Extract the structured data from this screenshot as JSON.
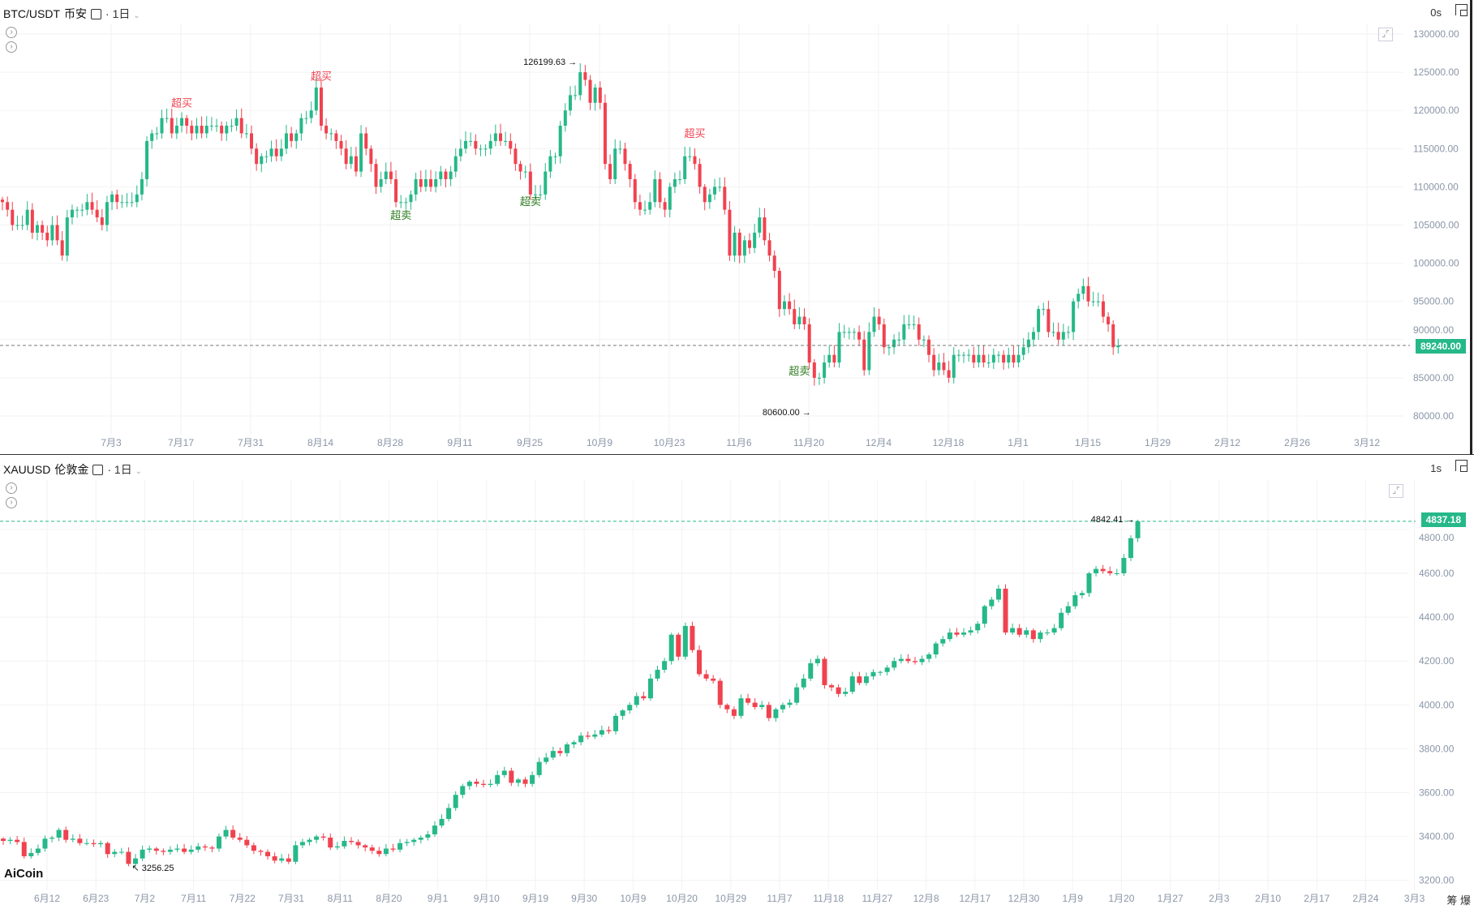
{
  "colors": {
    "up": "#26b889",
    "down": "#f0424f",
    "axis": "#8a96a8",
    "grid": "#f2f2f2",
    "signal_buy": "#f0424f",
    "signal_sell": "#2e7d1f"
  },
  "top": {
    "symbol": "BTC/USDT",
    "exchange": "币安",
    "interval": "1日",
    "refresh": "0s",
    "current_price": "89240.00",
    "high_label": "126199.63",
    "low_label": "80600.00",
    "y_ticks": [
      130000,
      125000,
      120000,
      115000,
      110000,
      105000,
      100000,
      95000,
      90000,
      85000,
      80000
    ],
    "y_tick_labels": [
      "130000.00",
      "125000.00",
      "120000.00",
      "115000.00",
      "110000.00",
      "105000.00",
      "100000.00",
      "95000.00",
      "90000.00",
      "85000.00",
      "80000.00"
    ],
    "x_ticks": [
      "7月3",
      "7月17",
      "7月31",
      "8月14",
      "8月28",
      "9月11",
      "9月25",
      "10月9",
      "10月23",
      "11月6",
      "11月20",
      "12月4",
      "12月18",
      "1月1",
      "1月15",
      "1月29",
      "2月12",
      "2月26",
      "3月12"
    ],
    "signals": [
      {
        "text": "超买",
        "type": "buy",
        "index": 36,
        "price": 120500
      },
      {
        "text": "超买",
        "type": "buy",
        "index": 64,
        "price": 124000
      },
      {
        "text": "超卖",
        "type": "sell",
        "index": 80,
        "price": 105800
      },
      {
        "text": "超卖",
        "type": "sell",
        "index": 106,
        "price": 107600
      },
      {
        "text": "超买",
        "type": "buy",
        "index": 139,
        "price": 116500
      },
      {
        "text": "超卖",
        "type": "sell",
        "index": 160,
        "price": 85400
      }
    ],
    "closes": [
      108,
      107,
      105,
      105,
      105,
      107,
      104,
      105,
      104,
      103,
      105,
      103,
      101,
      106,
      107,
      107,
      107,
      108,
      107,
      106,
      105,
      108,
      109,
      108,
      108,
      108,
      108,
      109,
      111,
      116,
      117,
      117,
      119,
      119,
      117,
      118,
      119,
      118,
      117,
      118,
      117,
      118,
      118,
      118,
      117,
      118,
      118,
      119,
      117,
      117,
      115,
      113,
      114,
      114,
      115,
      114,
      115,
      117,
      116,
      117,
      119,
      119,
      120,
      123,
      118,
      117,
      117,
      116,
      115,
      113,
      114,
      112,
      117,
      115,
      113,
      110,
      111,
      112,
      111,
      108,
      108,
      108,
      109,
      111,
      110,
      111,
      110,
      111,
      112,
      111,
      112,
      114,
      115,
      116,
      116,
      115,
      115,
      115,
      116,
      117,
      116,
      116,
      115,
      113,
      112,
      112,
      109,
      109,
      109,
      112,
      114,
      114,
      118,
      120,
      122,
      122,
      125,
      124,
      121,
      123,
      121,
      113,
      111,
      115,
      115,
      113,
      111,
      108,
      107,
      107,
      108,
      111,
      108,
      107,
      110,
      111,
      111,
      114,
      114,
      113,
      110,
      108,
      109,
      110,
      110,
      107,
      101,
      104,
      101,
      103,
      102,
      104,
      106,
      103,
      101,
      99,
      94,
      95,
      94,
      92,
      93,
      92,
      87,
      85,
      85,
      87,
      88,
      87,
      91,
      91,
      91,
      91,
      90,
      86,
      91,
      93,
      92,
      89,
      89,
      90,
      90,
      92,
      92,
      92,
      90,
      90,
      88,
      86,
      87,
      86,
      85,
      88,
      88,
      88,
      88,
      87,
      88,
      87,
      87,
      88,
      88,
      87,
      88,
      87,
      88,
      89,
      90,
      91,
      94,
      94,
      91,
      91,
      90,
      91,
      91,
      95,
      96,
      97,
      95,
      95,
      95,
      93,
      92,
      89,
      89.24
    ],
    "close_unit": "thousand"
  },
  "bottom": {
    "symbol": "XAUUSD",
    "exchange": "伦敦金",
    "interval": "1日",
    "refresh": "1s",
    "current_price": "4837.18",
    "high_label": "4842.41",
    "low_label": "3256.25",
    "y_ticks": [
      4800,
      4600,
      4400,
      4200,
      4000,
      3800,
      3600,
      3400,
      3200
    ],
    "y_tick_labels": [
      "4800.00",
      "4600.00",
      "4400.00",
      "4200.00",
      "4000.00",
      "3800.00",
      "3600.00",
      "3400.00",
      "3200.00"
    ],
    "x_ticks": [
      "6月12",
      "6月23",
      "7月2",
      "7月11",
      "7月22",
      "7月31",
      "8月11",
      "8月20",
      "9月1",
      "9月10",
      "9月19",
      "9月30",
      "10月9",
      "10月20",
      "10月29",
      "11月7",
      "11月18",
      "11月27",
      "12月8",
      "12月17",
      "12月30",
      "1月9",
      "1月20",
      "1月27",
      "2月3",
      "2月10",
      "2月17",
      "2月24",
      "3月3"
    ],
    "closes": [
      3380,
      3385,
      3375,
      3310,
      3325,
      3345,
      3390,
      3395,
      3430,
      3385,
      3390,
      3370,
      3370,
      3365,
      3370,
      3320,
      3330,
      3330,
      3275,
      3300,
      3340,
      3345,
      3335,
      3330,
      3340,
      3345,
      3330,
      3340,
      3355,
      3350,
      3345,
      3400,
      3430,
      3395,
      3385,
      3360,
      3335,
      3330,
      3310,
      3290,
      3300,
      3285,
      3360,
      3375,
      3385,
      3400,
      3395,
      3350,
      3355,
      3380,
      3375,
      3360,
      3350,
      3335,
      3320,
      3345,
      3340,
      3370,
      3375,
      3385,
      3395,
      3410,
      3450,
      3480,
      3530,
      3590,
      3630,
      3650,
      3640,
      3635,
      3640,
      3680,
      3700,
      3645,
      3660,
      3640,
      3680,
      3740,
      3760,
      3790,
      3780,
      3820,
      3830,
      3860,
      3855,
      3865,
      3885,
      3880,
      3950,
      3975,
      4000,
      4040,
      4030,
      4120,
      4160,
      4200,
      4320,
      4220,
      4360,
      4250,
      4140,
      4120,
      4110,
      4000,
      3980,
      3950,
      4030,
      4010,
      3990,
      4000,
      3940,
      3980,
      4000,
      4010,
      4080,
      4120,
      4190,
      4210,
      4090,
      4080,
      4050,
      4060,
      4130,
      4100,
      4130,
      4150,
      4150,
      4170,
      4200,
      4210,
      4200,
      4195,
      4210,
      4230,
      4280,
      4300,
      4330,
      4320,
      4330,
      4340,
      4370,
      4450,
      4480,
      4530,
      4330,
      4350,
      4320,
      4340,
      4300,
      4330,
      4330,
      4350,
      4420,
      4450,
      4500,
      4510,
      4600,
      4620,
      4610,
      4600,
      4600,
      4670,
      4760,
      4837.18
    ]
  },
  "branding": {
    "logo": "AiCoin",
    "footer_icons": "筹 爆"
  }
}
